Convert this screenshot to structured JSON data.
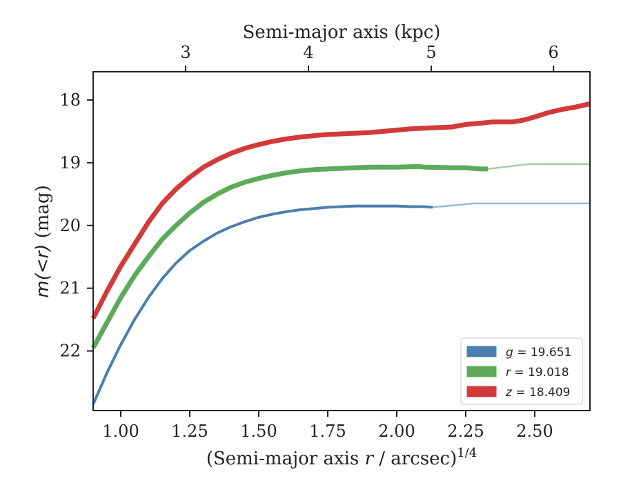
{
  "chart_data": {
    "type": "line",
    "xlabel_main": "(Semi-major axis ",
    "xlabel_var": "r",
    "xlabel_rest": " / arcsec)",
    "xlabel_sup": "1/4",
    "top_xlabel": "Semi-major axis (kpc)",
    "ylabel_pre": "m(<r)",
    "ylabel_post": " (mag)",
    "xlim": [
      0.9,
      2.7
    ],
    "ylim": [
      17.55,
      22.95
    ],
    "y_inverted": true,
    "x_ticks": [
      1.0,
      1.25,
      1.5,
      1.75,
      2.0,
      2.25,
      2.5
    ],
    "x_tick_labels": [
      "1.00",
      "1.25",
      "1.50",
      "1.75",
      "2.00",
      "2.25",
      "2.50"
    ],
    "y_ticks": [
      18,
      19,
      20,
      21,
      22
    ],
    "y_tick_labels": [
      "18",
      "19",
      "20",
      "21",
      "22"
    ],
    "top_ticks_x": [
      1.235,
      1.68,
      2.125,
      2.568
    ],
    "top_tick_labels": [
      "3",
      "4",
      "5",
      "6"
    ],
    "legend_position": "lower-right",
    "series": [
      {
        "name": "g",
        "legend_value": "= 19.651",
        "color": "#4a7eb0",
        "band_width": 4,
        "model_asymptote": 19.65,
        "x": [
          0.9,
          0.95,
          1.0,
          1.05,
          1.1,
          1.15,
          1.2,
          1.25,
          1.3,
          1.35,
          1.4,
          1.45,
          1.5,
          1.55,
          1.6,
          1.65,
          1.7,
          1.75,
          1.8,
          1.85,
          1.9,
          1.95,
          2.0,
          2.05,
          2.1,
          2.13
        ],
        "y": [
          22.85,
          22.35,
          21.9,
          21.5,
          21.15,
          20.85,
          20.6,
          20.4,
          20.25,
          20.12,
          20.02,
          19.94,
          19.87,
          19.82,
          19.78,
          19.75,
          19.73,
          19.71,
          19.7,
          19.69,
          19.69,
          19.69,
          19.69,
          19.7,
          19.7,
          19.71
        ]
      },
      {
        "name": "r",
        "legend_value": "= 19.018",
        "color": "#5caa5a",
        "band_width": 7,
        "model_asymptote": 19.02,
        "x": [
          0.9,
          0.95,
          1.0,
          1.05,
          1.1,
          1.15,
          1.2,
          1.25,
          1.3,
          1.35,
          1.4,
          1.45,
          1.5,
          1.55,
          1.6,
          1.65,
          1.7,
          1.75,
          1.8,
          1.85,
          1.9,
          2.0,
          2.08,
          2.1,
          2.2,
          2.25,
          2.3,
          2.33
        ],
        "y": [
          21.95,
          21.55,
          21.15,
          20.8,
          20.5,
          20.22,
          20.0,
          19.8,
          19.63,
          19.5,
          19.39,
          19.31,
          19.25,
          19.2,
          19.16,
          19.13,
          19.11,
          19.1,
          19.09,
          19.08,
          19.07,
          19.07,
          19.06,
          19.07,
          19.08,
          19.08,
          19.1,
          19.1
        ]
      },
      {
        "name": "z",
        "legend_value": "= 18.409",
        "color": "#d23a3a",
        "band_width": 7,
        "model_asymptote": 18.41,
        "x": [
          0.9,
          0.95,
          1.0,
          1.05,
          1.1,
          1.15,
          1.2,
          1.25,
          1.3,
          1.35,
          1.4,
          1.45,
          1.5,
          1.55,
          1.6,
          1.65,
          1.7,
          1.75,
          1.8,
          1.85,
          1.9,
          1.95,
          2.0,
          2.05,
          2.1,
          2.15,
          2.2,
          2.25,
          2.3,
          2.35,
          2.42,
          2.46,
          2.5,
          2.55,
          2.6,
          2.65,
          2.7
        ],
        "y": [
          21.48,
          21.05,
          20.65,
          20.3,
          19.95,
          19.65,
          19.42,
          19.23,
          19.07,
          18.95,
          18.85,
          18.77,
          18.71,
          18.66,
          18.62,
          18.59,
          18.57,
          18.55,
          18.54,
          18.53,
          18.52,
          18.5,
          18.48,
          18.46,
          18.45,
          18.44,
          18.43,
          18.39,
          18.37,
          18.35,
          18.35,
          18.32,
          18.27,
          18.2,
          18.15,
          18.11,
          18.06
        ]
      }
    ]
  }
}
